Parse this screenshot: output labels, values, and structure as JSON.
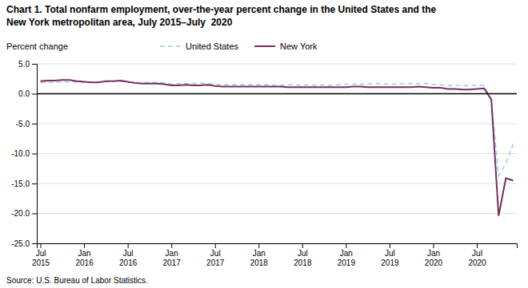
{
  "chart_data": {
    "type": "line",
    "title": "Chart 1. Total nonfarm employment, over-the-year percent change in the United States and the",
    "subtitle": "New York metropolitan area, July 2015–July  2020",
    "y_label": "Percent change",
    "source": "Source: U.S. Bureau of Labor Statistics.",
    "categories": [
      "Jul\n2015",
      null,
      null,
      null,
      null,
      null,
      "Jan\n2016",
      null,
      null,
      null,
      null,
      null,
      "Jul\n2016",
      null,
      null,
      null,
      null,
      null,
      "Jan\n2017",
      null,
      null,
      null,
      null,
      null,
      "Jul\n2017",
      null,
      null,
      null,
      null,
      null,
      "Jan\n2018",
      null,
      null,
      null,
      null,
      null,
      "Jul\n2018",
      null,
      null,
      null,
      null,
      null,
      "Jan\n2019",
      null,
      null,
      null,
      null,
      null,
      "Jul\n2019",
      null,
      null,
      null,
      null,
      null,
      "Jan\n2020",
      null,
      null,
      null,
      null,
      null,
      "Jul\n2020",
      null,
      null,
      null,
      null,
      null
    ],
    "series": [
      {
        "name": "United States",
        "color": "#9ecae1",
        "line_style": "dashed",
        "values": [
          1.9,
          1.9,
          1.9,
          2.0,
          2.0,
          2.0,
          1.9,
          1.9,
          2.0,
          2.0,
          2.1,
          2.1,
          1.9,
          1.9,
          1.8,
          1.9,
          1.9,
          1.8,
          1.6,
          1.7,
          1.7,
          1.7,
          1.8,
          1.7,
          1.6,
          1.5,
          1.5,
          1.5,
          1.5,
          1.5,
          1.5,
          1.5,
          1.4,
          1.4,
          1.5,
          1.5,
          1.4,
          1.5,
          1.4,
          1.5,
          1.4,
          1.5,
          1.6,
          1.6,
          1.6,
          1.6,
          1.7,
          1.7,
          1.6,
          1.6,
          1.7,
          1.7,
          1.7,
          1.7,
          1.5,
          1.5,
          1.4,
          1.4,
          1.3,
          1.4,
          1.4,
          1.4,
          -0.9,
          -13.7,
          -11.6,
          -8.4
        ]
      },
      {
        "name": "New York",
        "color": "#7b2d5e",
        "line_style": "solid",
        "values": [
          2.1,
          2.2,
          2.2,
          2.3,
          2.3,
          2.1,
          2.0,
          1.9,
          1.9,
          2.1,
          2.1,
          2.2,
          2.0,
          1.8,
          1.7,
          1.7,
          1.7,
          1.6,
          1.4,
          1.4,
          1.5,
          1.4,
          1.4,
          1.5,
          1.3,
          1.2,
          1.2,
          1.2,
          1.2,
          1.2,
          1.2,
          1.2,
          1.2,
          1.2,
          1.1,
          1.1,
          1.1,
          1.1,
          1.1,
          1.1,
          1.1,
          1.1,
          1.1,
          1.2,
          1.2,
          1.1,
          1.1,
          1.1,
          1.1,
          1.1,
          1.1,
          1.1,
          1.2,
          1.1,
          1.0,
          1.0,
          0.8,
          0.8,
          0.7,
          0.7,
          0.8,
          0.9,
          -1.0,
          -20.4,
          -14.1,
          -14.5
        ]
      }
    ],
    "ylim": [
      -25.0,
      5.0
    ],
    "yticks": [
      {
        "value": 5.0,
        "label": "5.0"
      },
      {
        "value": 0.0,
        "label": "0.0"
      },
      {
        "value": -5.0,
        "label": "-5.0"
      },
      {
        "value": -10.0,
        "label": "-10.0"
      },
      {
        "value": -15.0,
        "label": "-15.0"
      },
      {
        "value": -20.0,
        "label": "-20.0"
      },
      {
        "value": -25.0,
        "label": "-25.0"
      }
    ],
    "grid": true,
    "legend": "top"
  }
}
